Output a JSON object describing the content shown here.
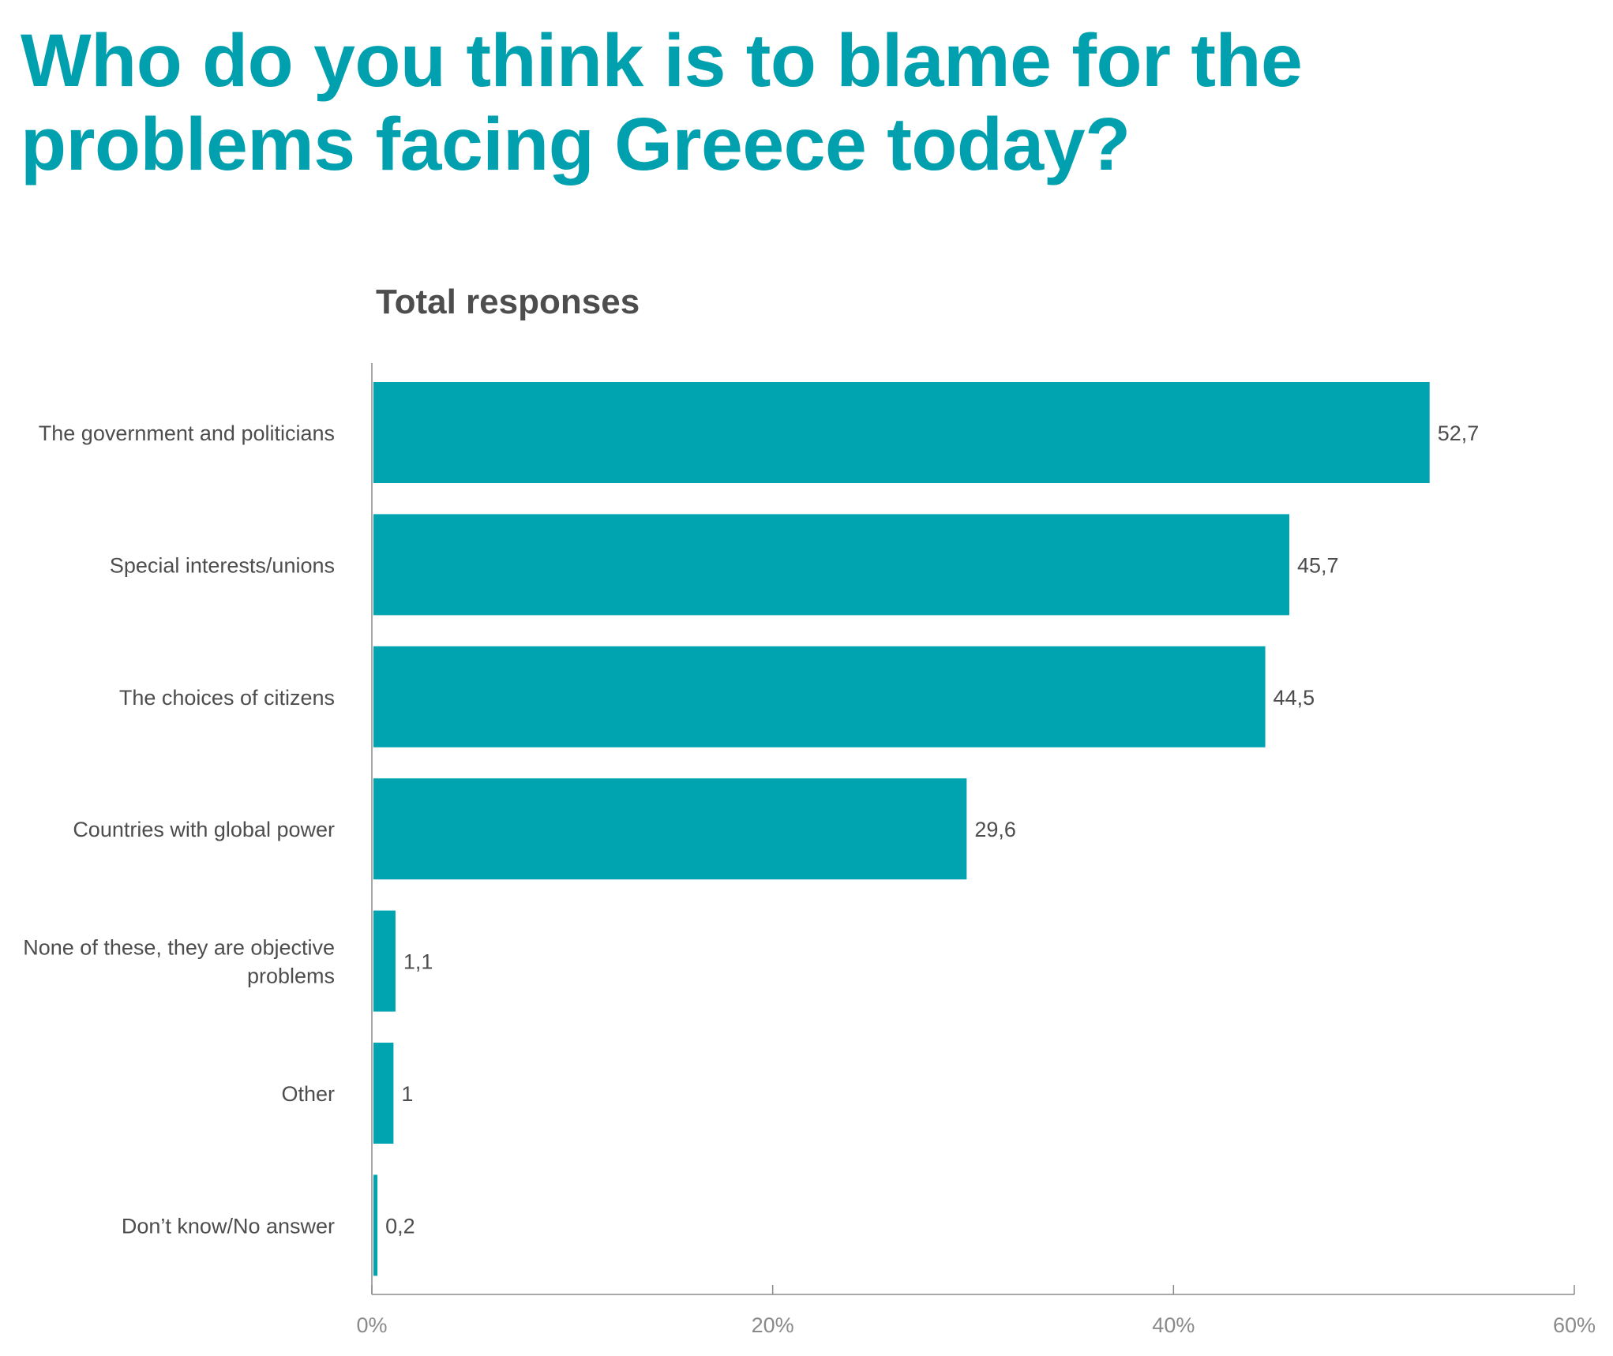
{
  "title": "Who do you think is to blame for the problems facing Greece today?",
  "subtitle": "Total responses",
  "colors": {
    "title": "#00A0AE",
    "bar": "#00A3B0",
    "text": "#4D4D4D",
    "axis": "#8A8A8A"
  },
  "chart_data": {
    "type": "bar",
    "orientation": "horizontal",
    "title": "Total responses",
    "categories": [
      "The government and politicians",
      "Special interests/unions",
      "The choices of citizens",
      "Countries with global power",
      "None of these, they are objective problems",
      "Other",
      "Don’t know/No answer"
    ],
    "category_label_lines": [
      [
        "The government and politicians"
      ],
      [
        "Special interests/unions"
      ],
      [
        "The choices of citizens"
      ],
      [
        "Countries with global power"
      ],
      [
        "None of these, they are objective",
        "problems"
      ],
      [
        "Other"
      ],
      [
        "Don’t know/No answer"
      ]
    ],
    "values": [
      52.7,
      45.7,
      44.5,
      29.6,
      1.1,
      1,
      0.2
    ],
    "value_labels": [
      "52,7",
      "45,7",
      "44,5",
      "29,6",
      "1,1",
      "1",
      "0,2"
    ],
    "xlim": [
      0,
      60
    ],
    "x_ticks": [
      0,
      20,
      40,
      60
    ],
    "x_tick_labels": [
      "0%",
      "20%",
      "40%",
      "60%"
    ],
    "xlabel": "",
    "ylabel": "",
    "grid": false,
    "legend": "none"
  }
}
